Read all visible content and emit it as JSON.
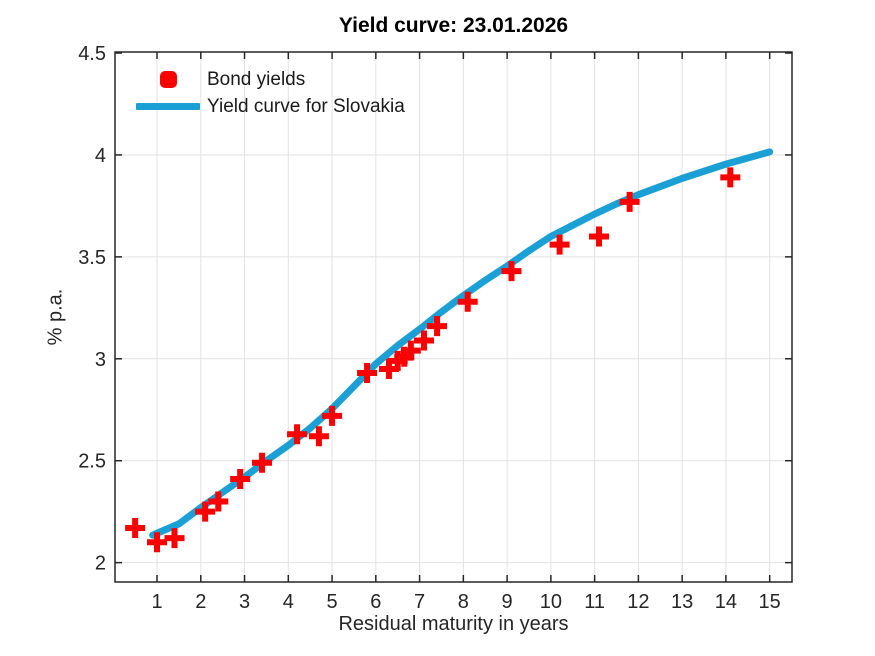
{
  "figure": {
    "title": "Yield curve: 23.01.2026",
    "xlabel": "Residual maturity in years",
    "ylabel": "% p.a."
  },
  "legend": {
    "items": [
      {
        "label": "Bond yields",
        "icon": "plus-marker",
        "color": "#FA0000"
      },
      {
        "label": "Yield curve for Slovakia",
        "icon": "line-sample",
        "color": "#1BA0D6"
      }
    ]
  },
  "colors": {
    "marker_red": "#FA0000",
    "curve_blue": "#1BA0D6",
    "grid": "#E2E2E2",
    "axis": "#262626",
    "tick_label": "#262626"
  },
  "chart_data": {
    "type": "scatter",
    "title": "Yield curve: 23.01.2026",
    "xlabel": "Residual maturity in years",
    "ylabel": "% p.a.",
    "xlim": [
      0.04,
      15.51
    ],
    "ylim": [
      1.905,
      4.505
    ],
    "xticks": [
      1,
      2,
      3,
      4,
      5,
      6,
      7,
      8,
      9,
      10,
      11,
      12,
      13,
      14,
      15
    ],
    "yticks": [
      2,
      2.5,
      3,
      3.5,
      4,
      4.5
    ],
    "grid": true,
    "legend_position": "top-left-inside",
    "series": [
      {
        "name": "Bond yields",
        "type": "scatter",
        "marker": "plus",
        "color": "#FA0000",
        "points": [
          [
            0.5,
            2.17
          ],
          [
            1.0,
            2.1
          ],
          [
            1.4,
            2.12
          ],
          [
            2.1,
            2.25
          ],
          [
            2.4,
            2.3
          ],
          [
            2.9,
            2.41
          ],
          [
            3.4,
            2.49
          ],
          [
            4.2,
            2.63
          ],
          [
            4.7,
            2.62
          ],
          [
            5.0,
            2.72
          ],
          [
            5.8,
            2.93
          ],
          [
            6.3,
            2.95
          ],
          [
            6.5,
            2.99
          ],
          [
            6.65,
            3.01
          ],
          [
            6.8,
            3.04
          ],
          [
            7.1,
            3.09
          ],
          [
            7.4,
            3.16
          ],
          [
            8.1,
            3.28
          ],
          [
            9.1,
            3.43
          ],
          [
            10.2,
            3.56
          ],
          [
            11.1,
            3.6
          ],
          [
            11.8,
            3.77
          ],
          [
            14.1,
            3.89
          ]
        ]
      },
      {
        "name": "Yield curve for Slovakia",
        "type": "line",
        "color": "#1BA0D6",
        "points": [
          [
            0.9,
            2.135
          ],
          [
            1.5,
            2.19
          ],
          [
            2.0,
            2.27
          ],
          [
            2.5,
            2.345
          ],
          [
            3.0,
            2.42
          ],
          [
            3.5,
            2.5
          ],
          [
            4.0,
            2.575
          ],
          [
            4.5,
            2.66
          ],
          [
            5.0,
            2.755
          ],
          [
            5.5,
            2.865
          ],
          [
            6.0,
            2.975
          ],
          [
            6.5,
            3.065
          ],
          [
            7.0,
            3.145
          ],
          [
            7.5,
            3.23
          ],
          [
            8.0,
            3.31
          ],
          [
            8.5,
            3.385
          ],
          [
            9.0,
            3.455
          ],
          [
            9.5,
            3.53
          ],
          [
            10.0,
            3.6
          ],
          [
            10.5,
            3.655
          ],
          [
            11.0,
            3.71
          ],
          [
            11.5,
            3.76
          ],
          [
            12.0,
            3.805
          ],
          [
            12.5,
            3.845
          ],
          [
            13.0,
            3.885
          ],
          [
            13.5,
            3.92
          ],
          [
            14.0,
            3.955
          ],
          [
            14.5,
            3.985
          ],
          [
            15.0,
            4.015
          ]
        ]
      }
    ]
  }
}
